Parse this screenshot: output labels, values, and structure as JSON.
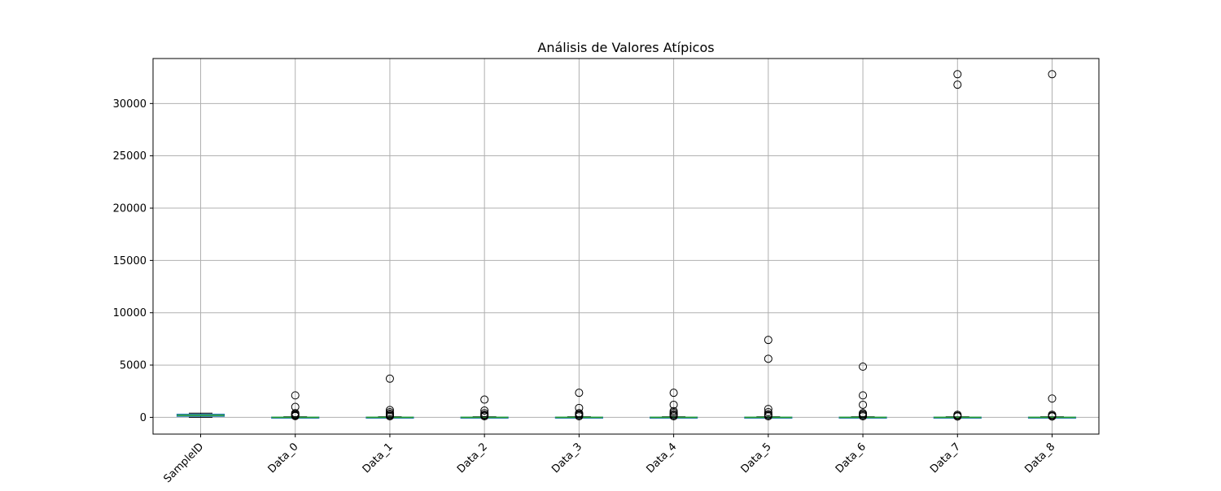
{
  "chart_data": {
    "type": "boxplot",
    "title": "Análisis de Valores Atípicos",
    "xlabel": "",
    "ylabel": "",
    "ylim": [
      -1600,
      34300
    ],
    "yticks": [
      0,
      5000,
      10000,
      15000,
      20000,
      25000,
      30000
    ],
    "ytick_labels": [
      "0",
      "5000",
      "10000",
      "15000",
      "20000",
      "25000",
      "30000"
    ],
    "grid": true,
    "categories": [
      "SampleID",
      "Data_0",
      "Data_1",
      "Data_2",
      "Data_3",
      "Data_4",
      "Data_5",
      "Data_6",
      "Data_7",
      "Data_8"
    ],
    "series": [
      {
        "box": {
          "whislo": 1,
          "q1": 100,
          "med": 200,
          "q3": 300,
          "whishi": 400
        },
        "outliers": []
      },
      {
        "box": {
          "whislo": -10,
          "q1": 0,
          "med": 5,
          "q3": 20,
          "whishi": 60
        },
        "outliers": [
          120,
          180,
          230,
          300,
          400,
          1000,
          2100
        ]
      },
      {
        "box": {
          "whislo": -10,
          "q1": 0,
          "med": 5,
          "q3": 20,
          "whishi": 60
        },
        "outliers": [
          100,
          150,
          250,
          350,
          500,
          700,
          3700
        ]
      },
      {
        "box": {
          "whislo": -10,
          "q1": 0,
          "med": 5,
          "q3": 20,
          "whishi": 60
        },
        "outliers": [
          100,
          180,
          250,
          400,
          650,
          1700
        ]
      },
      {
        "box": {
          "whislo": -10,
          "q1": 0,
          "med": 5,
          "q3": 20,
          "whishi": 60
        },
        "outliers": [
          100,
          200,
          300,
          400,
          900,
          2350
        ]
      },
      {
        "box": {
          "whislo": -10,
          "q1": 0,
          "med": 5,
          "q3": 20,
          "whishi": 60
        },
        "outliers": [
          100,
          200,
          300,
          450,
          600,
          1200,
          2350
        ]
      },
      {
        "box": {
          "whislo": -10,
          "q1": 0,
          "med": 5,
          "q3": 20,
          "whishi": 60
        },
        "outliers": [
          100,
          200,
          300,
          500,
          800,
          5600,
          7400
        ]
      },
      {
        "box": {
          "whislo": -10,
          "q1": 0,
          "med": 5,
          "q3": 20,
          "whishi": 60
        },
        "outliers": [
          100,
          200,
          300,
          400,
          1200,
          2100,
          4850
        ]
      },
      {
        "box": {
          "whislo": -10,
          "q1": 0,
          "med": 5,
          "q3": 20,
          "whishi": 60
        },
        "outliers": [
          80,
          150,
          250,
          31800,
          32800
        ]
      },
      {
        "box": {
          "whislo": -10,
          "q1": 0,
          "med": 5,
          "q3": 20,
          "whishi": 60
        },
        "outliers": [
          80,
          150,
          250,
          1800,
          32800
        ]
      }
    ],
    "colors": {
      "box": "#1f77b4",
      "median": "#2ca02c",
      "whisker": "#000000",
      "grid": "#b0b0b0",
      "outlier": "#000000"
    }
  }
}
